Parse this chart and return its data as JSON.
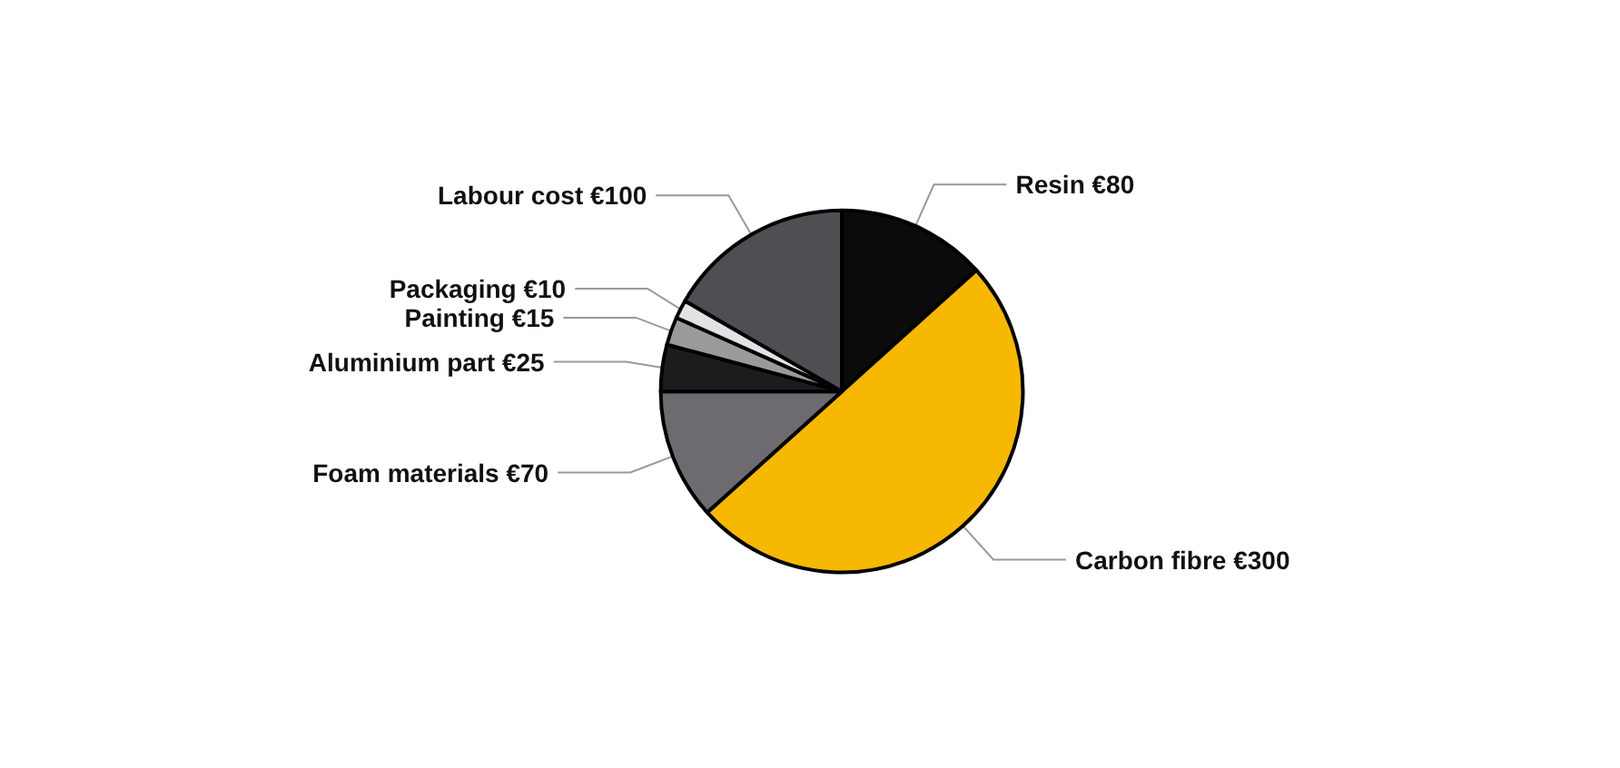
{
  "chart_data": {
    "type": "pie",
    "categories": [
      "Resin",
      "Carbon fibre",
      "Foam materials",
      "Aluminium part",
      "Painting",
      "Packaging",
      "Labour cost"
    ],
    "values": [
      80,
      300,
      70,
      25,
      15,
      10,
      100
    ],
    "value_labels": [
      "€80",
      "€300",
      "€70",
      "€25",
      "€15",
      "€10",
      "€100"
    ],
    "colors": [
      "#0b0b0b",
      "#f6b800",
      "#6d6a70",
      "#1c1c1e",
      "#9a9a9c",
      "#e2e2e4",
      "#4f4e52"
    ]
  }
}
